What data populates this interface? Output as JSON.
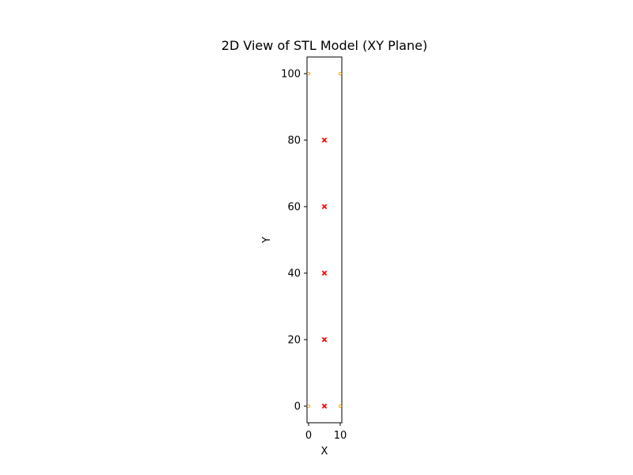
{
  "chart_data": {
    "type": "scatter",
    "title": "2D View of STL Model (XY Plane)",
    "xlabel": "X",
    "ylabel": "Y",
    "xlim": [
      -0.5,
      10.5
    ],
    "ylim": [
      -5,
      105
    ],
    "xticks": [
      0,
      10
    ],
    "yticks": [
      0,
      20,
      40,
      60,
      80,
      100
    ],
    "grid": false,
    "series": [
      {
        "color": "#ffa500",
        "marker": "small-circle",
        "points": [
          {
            "x": 0,
            "y": 0
          },
          {
            "x": 10,
            "y": 0
          },
          {
            "x": 0,
            "y": 100
          },
          {
            "x": 10,
            "y": 100
          }
        ]
      },
      {
        "color": "#ff0000",
        "marker": "x",
        "points": [
          {
            "x": 5,
            "y": 0
          },
          {
            "x": 5,
            "y": 20
          },
          {
            "x": 5,
            "y": 40
          },
          {
            "x": 5,
            "y": 60
          },
          {
            "x": 5,
            "y": 80
          }
        ]
      }
    ]
  }
}
